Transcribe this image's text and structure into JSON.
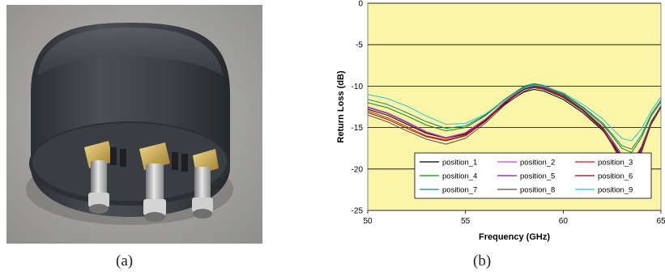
{
  "captions": {
    "a": "(a)",
    "b": "(b)"
  },
  "photo": {
    "subject": "cylindrical-fixture-with-connectors",
    "background": "#a8a7a4"
  },
  "chart_data": {
    "type": "line",
    "title": "",
    "xlabel": "Frequency (GHz)",
    "ylabel": "Return Loss (dB)",
    "xlim": [
      50,
      65
    ],
    "ylim": [
      -25,
      0
    ],
    "xticks": [
      "50",
      "55",
      "60",
      "65"
    ],
    "yticks": [
      "0",
      "-5",
      "-10",
      "-15",
      "-20",
      "-25"
    ],
    "grid": "horizontal",
    "plot_background": "#fbf5a8",
    "legend_position": "bottom-left-inside",
    "x": [
      50,
      51,
      52,
      53,
      54,
      55,
      56,
      57,
      58,
      58.5,
      59,
      60,
      61,
      62,
      62.5,
      63,
      63.5,
      64,
      64.5,
      65
    ],
    "series": [
      {
        "name": "position_1",
        "color": "#000000",
        "values": [
          -12.8,
          -13.5,
          -14.6,
          -15.7,
          -16.3,
          -15.8,
          -14.2,
          -12.2,
          -10.7,
          -10.4,
          -10.6,
          -11.6,
          -13.2,
          -15.3,
          -16.8,
          -18.6,
          -19.6,
          -17.5,
          -14.3,
          -12.4
        ]
      },
      {
        "name": "position_2",
        "color": "#cc44cc",
        "values": [
          -12.5,
          -13.2,
          -14.3,
          -15.5,
          -16.2,
          -15.6,
          -14.0,
          -12.0,
          -10.4,
          -10.1,
          -10.3,
          -11.3,
          -12.9,
          -15.0,
          -16.6,
          -18.5,
          -19.8,
          -17.8,
          -14.6,
          -12.6
        ]
      },
      {
        "name": "position_3",
        "color": "#dd1111",
        "values": [
          -13.0,
          -13.8,
          -14.9,
          -16.0,
          -16.5,
          -15.9,
          -14.1,
          -11.9,
          -10.2,
          -9.9,
          -10.1,
          -11.1,
          -12.8,
          -15.0,
          -16.9,
          -19.0,
          -20.3,
          -18.0,
          -14.5,
          -12.5
        ]
      },
      {
        "name": "position_4",
        "color": "#118811",
        "values": [
          -12.0,
          -12.6,
          -13.6,
          -14.7,
          -15.4,
          -15.0,
          -13.6,
          -11.7,
          -10.1,
          -9.8,
          -10.0,
          -11.0,
          -12.6,
          -14.6,
          -16.0,
          -17.5,
          -18.0,
          -16.2,
          -13.6,
          -11.9
        ]
      },
      {
        "name": "position_5",
        "color": "#7a1a99",
        "values": [
          -12.6,
          -13.3,
          -14.4,
          -15.6,
          -16.3,
          -15.7,
          -14.1,
          -12.0,
          -10.3,
          -10.0,
          -10.2,
          -11.2,
          -12.8,
          -14.9,
          -16.5,
          -18.3,
          -19.3,
          -17.3,
          -14.3,
          -12.4
        ]
      },
      {
        "name": "position_6",
        "color": "#7a0f0f",
        "values": [
          -13.2,
          -14.0,
          -15.1,
          -16.1,
          -16.6,
          -16.0,
          -14.3,
          -12.1,
          -10.4,
          -10.1,
          -10.3,
          -11.3,
          -12.9,
          -15.1,
          -16.9,
          -18.9,
          -20.0,
          -17.9,
          -14.6,
          -12.6
        ]
      },
      {
        "name": "position_7",
        "color": "#1a8080",
        "values": [
          -11.6,
          -12.2,
          -13.2,
          -14.3,
          -15.1,
          -14.8,
          -13.5,
          -11.6,
          -10.0,
          -9.7,
          -9.9,
          -10.9,
          -12.5,
          -14.4,
          -15.8,
          -17.2,
          -17.6,
          -15.9,
          -13.4,
          -11.7
        ]
      },
      {
        "name": "position_8",
        "color": "#505050",
        "values": [
          -13.5,
          -14.3,
          -15.4,
          -16.4,
          -17.0,
          -16.3,
          -14.5,
          -12.3,
          -10.6,
          -10.2,
          -10.4,
          -11.4,
          -13.0,
          -15.2,
          -17.1,
          -19.2,
          -20.0,
          -17.6,
          -14.4,
          -12.5
        ]
      },
      {
        "name": "position_9",
        "color": "#22c8d8",
        "values": [
          -11.0,
          -11.5,
          -12.4,
          -13.6,
          -14.6,
          -14.5,
          -13.4,
          -11.7,
          -10.2,
          -9.9,
          -10.0,
          -10.8,
          -12.2,
          -13.9,
          -15.1,
          -16.3,
          -16.6,
          -15.2,
          -13.0,
          -11.3
        ]
      }
    ]
  }
}
